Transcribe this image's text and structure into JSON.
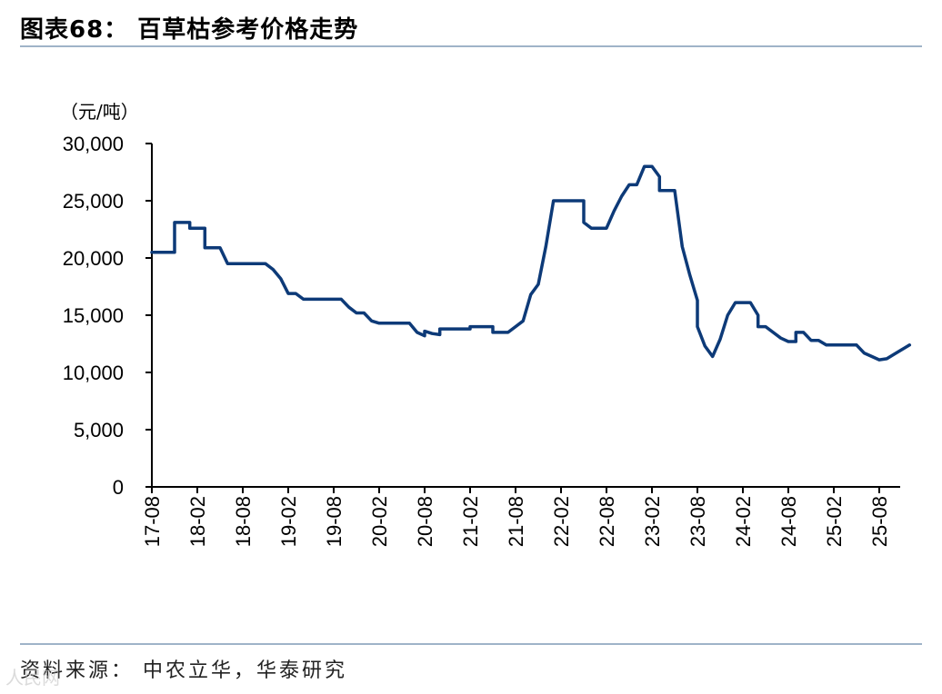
{
  "header": {
    "title": "图表68：  百草枯参考价格走势"
  },
  "footer": {
    "source": "资料来源：  中农立华，华泰研究",
    "watermark": "人民网"
  },
  "chart_data": {
    "type": "line",
    "title": "",
    "ylabel": "（元/吨）",
    "xlabel": "",
    "ylim": [
      0,
      30000
    ],
    "yticks": [
      0,
      5000,
      10000,
      15000,
      20000,
      25000,
      30000
    ],
    "ytick_labels": [
      "0",
      "5,000",
      "10,000",
      "15,000",
      "20,000",
      "25,000",
      "30,000"
    ],
    "xticks": [
      "17-08",
      "18-02",
      "18-08",
      "19-02",
      "19-08",
      "20-02",
      "20-08",
      "21-02",
      "21-08",
      "22-02",
      "22-08",
      "23-02",
      "23-08",
      "24-02",
      "24-08",
      "25-02",
      "25-08"
    ],
    "x_start": "17-08",
    "x_end": "25-12",
    "grid": false,
    "legend": "none",
    "color": "#0d3a78",
    "series": [
      {
        "name": "",
        "points": [
          [
            "17-08",
            20500
          ],
          [
            "17-11",
            20500
          ],
          [
            "17-11",
            23100
          ],
          [
            "18-01",
            23100
          ],
          [
            "18-01",
            22600
          ],
          [
            "18-03",
            22600
          ],
          [
            "18-03",
            20900
          ],
          [
            "18-05",
            20900
          ],
          [
            "18-06",
            19500
          ],
          [
            "18-11",
            19500
          ],
          [
            "18-12",
            19000
          ],
          [
            "19-01",
            18200
          ],
          [
            "19-02",
            16900
          ],
          [
            "19-03",
            16900
          ],
          [
            "19-04",
            16400
          ],
          [
            "19-09",
            16400
          ],
          [
            "19-10",
            15700
          ],
          [
            "19-11",
            15200
          ],
          [
            "19-12",
            15200
          ],
          [
            "20-01",
            14500
          ],
          [
            "20-02",
            14300
          ],
          [
            "20-06",
            14300
          ],
          [
            "20-07",
            13500
          ],
          [
            "20-08",
            13200
          ],
          [
            "20-08",
            13600
          ],
          [
            "20-09",
            13400
          ],
          [
            "20-10",
            13300
          ],
          [
            "20-10",
            13800
          ],
          [
            "21-02",
            13800
          ],
          [
            "21-02",
            14000
          ],
          [
            "21-05",
            14000
          ],
          [
            "21-05",
            13500
          ],
          [
            "21-07",
            13500
          ],
          [
            "21-08",
            14000
          ],
          [
            "21-09",
            14500
          ],
          [
            "21-10",
            16800
          ],
          [
            "21-11",
            17700
          ],
          [
            "21-12",
            21000
          ],
          [
            "22-01",
            25000
          ],
          [
            "22-05",
            25000
          ],
          [
            "22-05",
            23100
          ],
          [
            "22-06",
            22600
          ],
          [
            "22-08",
            22600
          ],
          [
            "22-09",
            24100
          ],
          [
            "22-10",
            25400
          ],
          [
            "22-11",
            26400
          ],
          [
            "22-12",
            26400
          ],
          [
            "23-01",
            28000
          ],
          [
            "23-02",
            28000
          ],
          [
            "23-03",
            27100
          ],
          [
            "23-03",
            25900
          ],
          [
            "23-05",
            25900
          ],
          [
            "23-06",
            21000
          ],
          [
            "23-07",
            18500
          ],
          [
            "23-08",
            16300
          ],
          [
            "23-08",
            14000
          ],
          [
            "23-09",
            12300
          ],
          [
            "23-10",
            11400
          ],
          [
            "23-11",
            12900
          ],
          [
            "23-12",
            15000
          ],
          [
            "24-01",
            16100
          ],
          [
            "24-03",
            16100
          ],
          [
            "24-04",
            15000
          ],
          [
            "24-04",
            14000
          ],
          [
            "24-05",
            14000
          ],
          [
            "24-06",
            13500
          ],
          [
            "24-07",
            13000
          ],
          [
            "24-08",
            12700
          ],
          [
            "24-09",
            12700
          ],
          [
            "24-09",
            13500
          ],
          [
            "24-10",
            13500
          ],
          [
            "24-11",
            12800
          ],
          [
            "24-12",
            12800
          ],
          [
            "25-01",
            12400
          ],
          [
            "25-05",
            12400
          ],
          [
            "25-06",
            11700
          ],
          [
            "25-07",
            11400
          ],
          [
            "25-08",
            11100
          ],
          [
            "25-09",
            11200
          ],
          [
            "25-10",
            11600
          ],
          [
            "25-11",
            12000
          ],
          [
            "25-12",
            12400
          ]
        ]
      }
    ]
  }
}
